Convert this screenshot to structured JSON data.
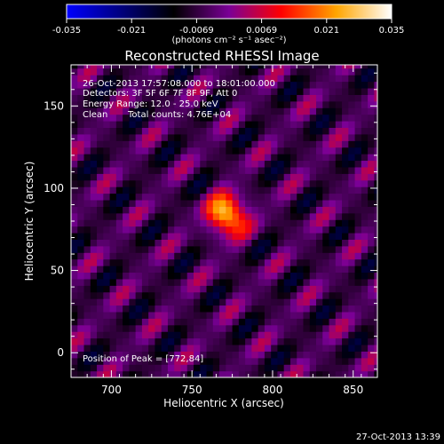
{
  "colorbar": {
    "ticks": [
      "-0.035",
      "-0.021",
      "-0.0069",
      "0.0069",
      "0.021",
      "0.035"
    ],
    "unit_label": "(photons cm⁻² s⁻¹ asec⁻²)"
  },
  "info": {
    "time_range": "26-Oct-2013 17:57:08.000 to 18:01:00.000",
    "detectors": "Detectors: 3F 5F 6F 7F 8F 9F, Att 0",
    "energy_range": "Energy Range: 12.0 - 25.0 keV",
    "clean_label": "Clean",
    "total_counts": "Total counts: 4.76E+04",
    "peak_position": "Position of Peak = [772,84]"
  },
  "footer": {
    "timestamp": "27-Oct-2013 13:39"
  },
  "chart_data": {
    "type": "heatmap",
    "title": "Reconstructed RHESSI Image",
    "xlabel": "Heliocentric X (arcsec)",
    "ylabel": "Heliocentric Y (arcsec)",
    "xlim": [
      675,
      865
    ],
    "ylim": [
      -15,
      175
    ],
    "x_ticks": [
      700,
      750,
      800,
      850
    ],
    "y_ticks": [
      0,
      50,
      100,
      150
    ],
    "colorbar_range": [
      -0.035,
      0.035
    ],
    "colormap": [
      "#0000ff",
      "#000000",
      "#7a0096",
      "#ff0000",
      "#ffa500",
      "#ffffff"
    ],
    "peak": {
      "x": 772,
      "y": 84,
      "value": 0.035
    },
    "ripple": {
      "direction": "diagonal",
      "period_arcsec": 28,
      "amplitude": 0.012
    }
  }
}
